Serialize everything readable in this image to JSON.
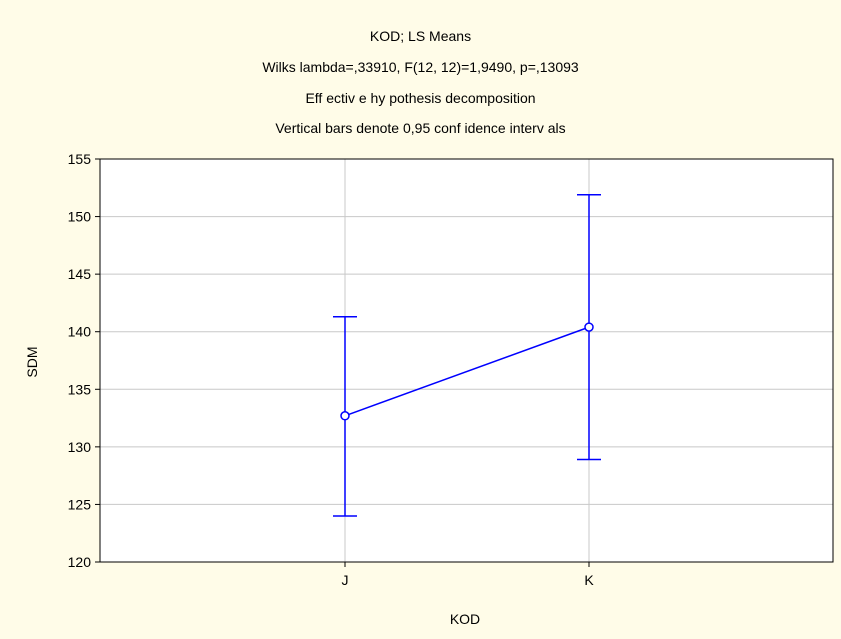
{
  "chart_data": {
    "type": "line",
    "title_lines": [
      "KOD; LS Means",
      "Wilks lambda=,33910, F(12, 12)=1,9490, p=,13093",
      "Eff ectiv e hy pothesis decomposition",
      "Vertical bars denote 0,95 conf idence interv als"
    ],
    "xlabel": "KOD",
    "ylabel": "SDM",
    "categories": [
      "J",
      "K"
    ],
    "series": [
      {
        "values": [
          132.7,
          140.4
        ],
        "ci_lower": [
          124.0,
          128.9
        ],
        "ci_upper": [
          141.3,
          151.9
        ]
      }
    ],
    "ylim": [
      120,
      155
    ],
    "yticks": [
      "120",
      "125",
      "130",
      "135",
      "140",
      "145",
      "150",
      "155"
    ],
    "grid": true,
    "line_color": "#0000ff",
    "grid_color": "#c8c8c8",
    "background_color": "#fffce8"
  }
}
